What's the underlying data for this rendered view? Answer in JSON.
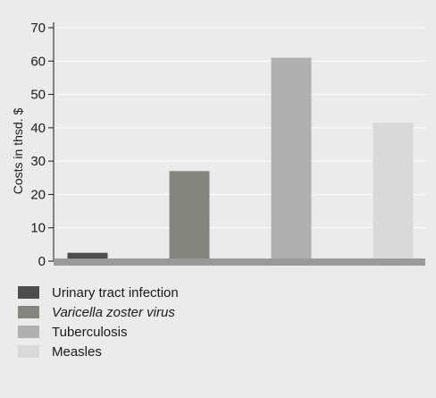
{
  "chart_data": {
    "type": "bar",
    "categories": [
      "Urinary tract infection",
      "Varicella zoster virus",
      "Tuberculosis",
      "Measles"
    ],
    "values": [
      2.5,
      27,
      61,
      41.5
    ],
    "colors": [
      "#4d4d4d",
      "#858580",
      "#b0b0b0",
      "#d9d9d9"
    ],
    "italic": [
      false,
      true,
      false,
      false
    ],
    "title": "",
    "xlabel": "",
    "ylabel": "Costs in thsd. $",
    "ylim": [
      0,
      70
    ],
    "yticks": [
      0,
      10,
      20,
      30,
      40,
      50,
      60,
      70
    ],
    "grid": true,
    "legend_position": "bottom-left"
  }
}
